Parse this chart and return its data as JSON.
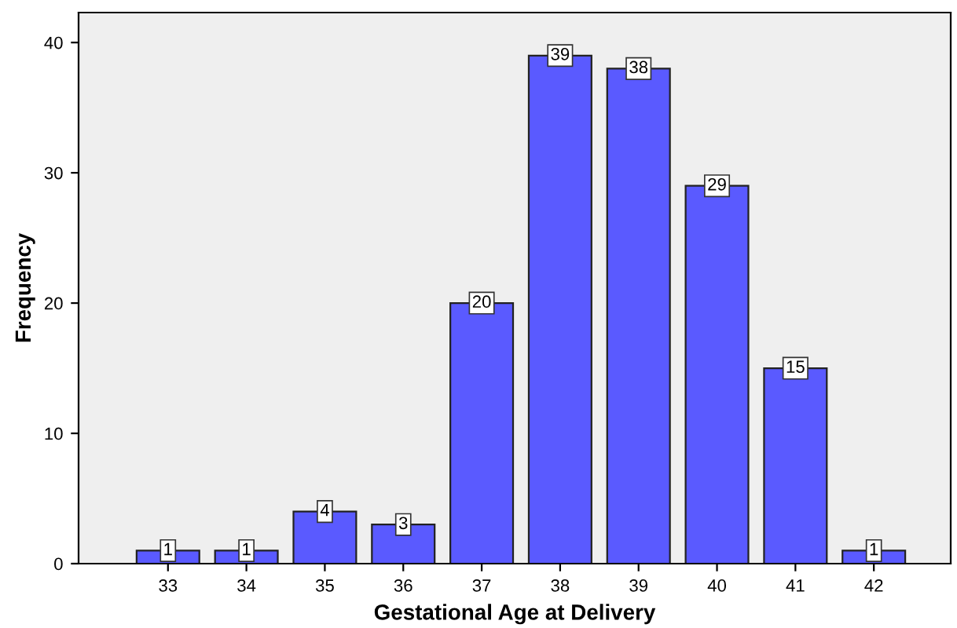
{
  "chart_data": {
    "type": "bar",
    "xlabel": "Gestational Age at Delivery",
    "ylabel": "Frequency",
    "categories": [
      "33",
      "34",
      "35",
      "36",
      "37",
      "38",
      "39",
      "40",
      "41",
      "42"
    ],
    "values": [
      1,
      1,
      4,
      3,
      20,
      39,
      38,
      29,
      15,
      1
    ],
    "color": "#5a5aff",
    "ylim": [
      0,
      42.3
    ],
    "yticks": [
      0,
      10,
      20,
      30,
      40
    ],
    "grid": false,
    "data_labels": true
  }
}
